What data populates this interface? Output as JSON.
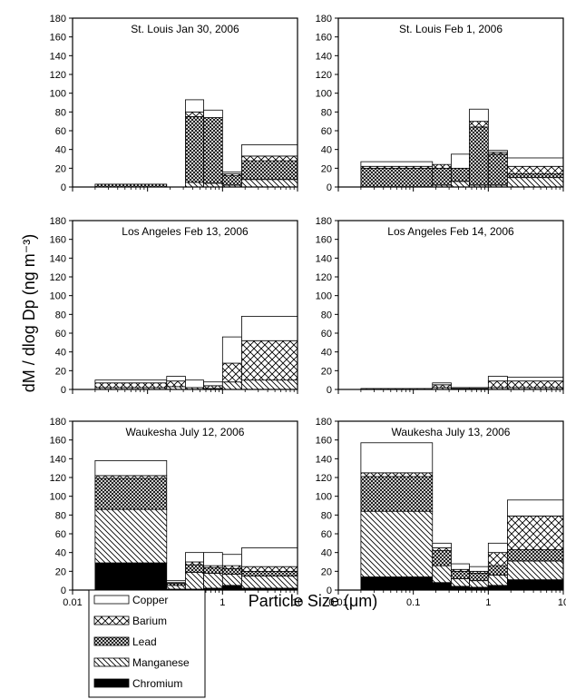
{
  "figure": {
    "ylabel": "dM / dlog Dp (ng m⁻³)",
    "xlabel": "Particle Size (μm)"
  },
  "legend": {
    "items": [
      {
        "key": "copper",
        "label": "Copper",
        "pattern": "blank"
      },
      {
        "key": "barium",
        "label": "Barium",
        "pattern": "crosshatch"
      },
      {
        "key": "lead",
        "label": "Lead",
        "pattern": "dense-crosshatch"
      },
      {
        "key": "manganese",
        "label": "Manganese",
        "pattern": "diagonal"
      },
      {
        "key": "chromium",
        "label": "Chromium",
        "pattern": "solid"
      }
    ]
  },
  "chart_data": [
    {
      "type": "bar",
      "stacked": true,
      "title": "St. Louis Jan 30, 2006",
      "xscale": "log",
      "xlim": [
        0.01,
        10
      ],
      "ylim": [
        0,
        180
      ],
      "yticks": [
        0,
        20,
        40,
        60,
        80,
        100,
        120,
        140,
        160,
        180
      ],
      "xticks": [],
      "bins": [
        [
          0.02,
          0.18
        ],
        [
          0.18,
          0.32
        ],
        [
          0.32,
          0.56
        ],
        [
          0.56,
          1.0
        ],
        [
          1.0,
          1.8
        ],
        [
          1.8,
          10
        ]
      ],
      "series": [
        {
          "name": "Chromium",
          "values": [
            0,
            0,
            0,
            0,
            0,
            0
          ]
        },
        {
          "name": "Manganese",
          "values": [
            0,
            0,
            5,
            4,
            2,
            8
          ]
        },
        {
          "name": "Lead",
          "values": [
            3,
            0,
            70,
            70,
            10,
            20
          ]
        },
        {
          "name": "Barium",
          "values": [
            0,
            0,
            5,
            0,
            2,
            5
          ]
        },
        {
          "name": "Copper",
          "values": [
            0,
            0,
            13,
            8,
            2,
            12
          ]
        }
      ]
    },
    {
      "type": "bar",
      "stacked": true,
      "title": "St. Louis Feb 1, 2006",
      "xscale": "log",
      "xlim": [
        0.01,
        10
      ],
      "ylim": [
        0,
        180
      ],
      "yticks": [
        0,
        20,
        40,
        60,
        80,
        100,
        120,
        140,
        160,
        180
      ],
      "xticks": [],
      "bins": [
        [
          0.02,
          0.18
        ],
        [
          0.18,
          0.32
        ],
        [
          0.32,
          0.56
        ],
        [
          0.56,
          1.0
        ],
        [
          1.0,
          1.8
        ],
        [
          1.8,
          10
        ]
      ],
      "series": [
        {
          "name": "Chromium",
          "values": [
            0,
            0,
            0,
            0,
            0,
            0
          ]
        },
        {
          "name": "Manganese",
          "values": [
            0,
            2,
            6,
            2,
            2,
            10
          ]
        },
        {
          "name": "Lead",
          "values": [
            20,
            18,
            14,
            62,
            33,
            4
          ]
        },
        {
          "name": "Barium",
          "values": [
            2,
            4,
            0,
            6,
            2,
            8
          ]
        },
        {
          "name": "Copper",
          "values": [
            5,
            0,
            15,
            13,
            2,
            9
          ]
        }
      ]
    },
    {
      "type": "bar",
      "stacked": true,
      "title": "Los Angeles Feb 13, 2006",
      "xscale": "log",
      "xlim": [
        0.01,
        10
      ],
      "ylim": [
        0,
        180
      ],
      "yticks": [
        0,
        20,
        40,
        60,
        80,
        100,
        120,
        140,
        160,
        180
      ],
      "xticks": [],
      "bins": [
        [
          0.02,
          0.18
        ],
        [
          0.18,
          0.32
        ],
        [
          0.32,
          0.56
        ],
        [
          0.56,
          1.0
        ],
        [
          1.0,
          1.8
        ],
        [
          1.8,
          10
        ]
      ],
      "series": [
        {
          "name": "Chromium",
          "values": [
            0,
            0,
            0,
            0,
            0,
            0
          ]
        },
        {
          "name": "Manganese",
          "values": [
            2,
            3,
            2,
            1,
            8,
            10
          ]
        },
        {
          "name": "Lead",
          "values": [
            0,
            0,
            0,
            0,
            0,
            0
          ]
        },
        {
          "name": "Barium",
          "values": [
            5,
            6,
            0,
            3,
            20,
            42
          ]
        },
        {
          "name": "Copper",
          "values": [
            3,
            5,
            8,
            4,
            28,
            26
          ]
        }
      ]
    },
    {
      "type": "bar",
      "stacked": true,
      "title": "Los Angeles Feb 14, 2006",
      "xscale": "log",
      "xlim": [
        0.01,
        10
      ],
      "ylim": [
        0,
        180
      ],
      "yticks": [
        0,
        20,
        40,
        60,
        80,
        100,
        120,
        140,
        160,
        180
      ],
      "xticks": [],
      "bins": [
        [
          0.02,
          0.18
        ],
        [
          0.18,
          0.32
        ],
        [
          0.32,
          0.56
        ],
        [
          0.56,
          1.0
        ],
        [
          1.0,
          1.8
        ],
        [
          1.8,
          10
        ]
      ],
      "series": [
        {
          "name": "Chromium",
          "values": [
            0,
            0,
            0,
            0,
            0,
            0
          ]
        },
        {
          "name": "Manganese",
          "values": [
            0,
            2,
            1,
            1,
            2,
            2
          ]
        },
        {
          "name": "Lead",
          "values": [
            0,
            0,
            0,
            0,
            0,
            0
          ]
        },
        {
          "name": "Barium",
          "values": [
            1,
            3,
            0,
            0,
            7,
            7
          ]
        },
        {
          "name": "Copper",
          "values": [
            0,
            2,
            1,
            1,
            5,
            4
          ]
        }
      ]
    },
    {
      "type": "bar",
      "stacked": true,
      "title": "Waukesha July 12, 2006",
      "xscale": "log",
      "xlim": [
        0.01,
        10
      ],
      "ylim": [
        0,
        180
      ],
      "yticks": [
        0,
        20,
        40,
        60,
        80,
        100,
        120,
        140,
        160,
        180
      ],
      "xticks": [
        "0.01",
        "0.1",
        "1",
        "10"
      ],
      "bins": [
        [
          0.02,
          0.18
        ],
        [
          0.18,
          0.32
        ],
        [
          0.32,
          0.56
        ],
        [
          0.56,
          1.0
        ],
        [
          1.0,
          1.8
        ],
        [
          1.8,
          10
        ]
      ],
      "series": [
        {
          "name": "Chromium",
          "values": [
            29,
            1,
            1,
            2,
            5,
            2
          ]
        },
        {
          "name": "Manganese",
          "values": [
            57,
            4,
            18,
            16,
            12,
            13
          ]
        },
        {
          "name": "Lead",
          "values": [
            33,
            2,
            8,
            6,
            6,
            5
          ]
        },
        {
          "name": "Barium",
          "values": [
            3,
            1,
            3,
            2,
            3,
            5
          ]
        },
        {
          "name": "Copper",
          "values": [
            16,
            2,
            10,
            14,
            12,
            20
          ]
        }
      ]
    },
    {
      "type": "bar",
      "stacked": true,
      "title": "Waukesha July 13, 2006",
      "xscale": "log",
      "xlim": [
        0.01,
        10
      ],
      "ylim": [
        0,
        180
      ],
      "yticks": [
        0,
        20,
        40,
        60,
        80,
        100,
        120,
        140,
        160,
        180
      ],
      "xticks": [
        "0.01",
        "0.1",
        "1",
        "10"
      ],
      "bins": [
        [
          0.02,
          0.18
        ],
        [
          0.18,
          0.32
        ],
        [
          0.32,
          0.56
        ],
        [
          0.56,
          1.0
        ],
        [
          1.0,
          1.8
        ],
        [
          1.8,
          10
        ]
      ],
      "series": [
        {
          "name": "Chromium",
          "values": [
            14,
            8,
            4,
            3,
            5,
            11
          ]
        },
        {
          "name": "Manganese",
          "values": [
            70,
            18,
            8,
            7,
            11,
            20
          ]
        },
        {
          "name": "Lead",
          "values": [
            37,
            16,
            8,
            8,
            10,
            12
          ]
        },
        {
          "name": "Barium",
          "values": [
            4,
            3,
            2,
            2,
            14,
            36
          ]
        },
        {
          "name": "Copper",
          "values": [
            32,
            5,
            6,
            5,
            10,
            17
          ]
        }
      ]
    }
  ]
}
